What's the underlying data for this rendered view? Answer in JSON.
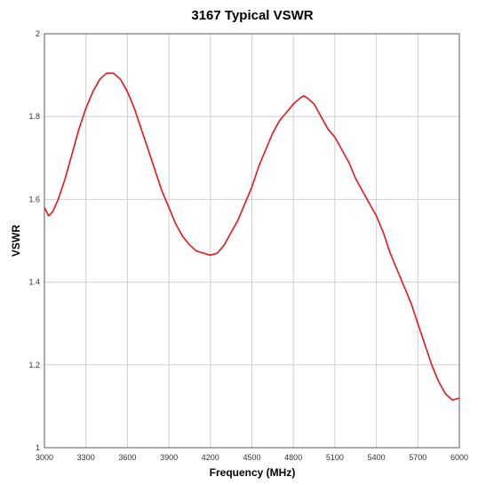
{
  "chart_data": {
    "type": "line",
    "title": "3167 Typical VSWR",
    "xlabel": "Frequency (MHz)",
    "ylabel": "VSWR",
    "xlim": [
      3000,
      6000
    ],
    "ylim": [
      1,
      2
    ],
    "x_ticks": [
      "3000",
      "3300",
      "3600",
      "3900",
      "4200",
      "4500",
      "4800",
      "5100",
      "5400",
      "5700",
      "6000"
    ],
    "y_ticks": [
      "1",
      "1.2",
      "1.4",
      "1.6",
      "1.8",
      "2"
    ],
    "grid": true,
    "line_color": "#e8141c",
    "series": [
      {
        "x": [
          3000,
          3030,
          3060,
          3100,
          3150,
          3200,
          3250,
          3300,
          3350,
          3400,
          3450,
          3500,
          3550,
          3600,
          3650,
          3700,
          3750,
          3800,
          3850,
          3900,
          3950,
          4000,
          4050,
          4100,
          4150,
          4200,
          4250,
          4300,
          4350,
          4400,
          4450,
          4500,
          4550,
          4600,
          4650,
          4700,
          4750,
          4800,
          4850,
          4875,
          4900,
          4950,
          5000,
          5050,
          5100,
          5150,
          5200,
          5250,
          5300,
          5350,
          5400,
          5450,
          5500,
          5550,
          5600,
          5650,
          5700,
          5750,
          5800,
          5850,
          5900,
          5950,
          6000
        ],
        "y": [
          1.58,
          1.56,
          1.57,
          1.6,
          1.65,
          1.71,
          1.77,
          1.82,
          1.86,
          1.89,
          1.905,
          1.905,
          1.89,
          1.86,
          1.82,
          1.77,
          1.72,
          1.67,
          1.62,
          1.58,
          1.54,
          1.51,
          1.49,
          1.475,
          1.47,
          1.465,
          1.47,
          1.49,
          1.52,
          1.55,
          1.59,
          1.63,
          1.68,
          1.72,
          1.76,
          1.79,
          1.81,
          1.83,
          1.845,
          1.85,
          1.845,
          1.83,
          1.8,
          1.77,
          1.75,
          1.72,
          1.69,
          1.65,
          1.62,
          1.59,
          1.56,
          1.52,
          1.47,
          1.43,
          1.39,
          1.35,
          1.3,
          1.25,
          1.2,
          1.16,
          1.13,
          1.115,
          1.12
        ]
      }
    ]
  }
}
